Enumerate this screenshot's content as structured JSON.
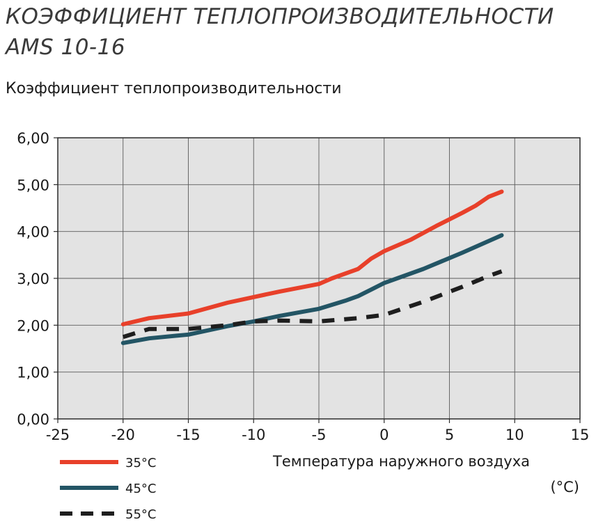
{
  "header": {
    "title_line1": "КОЭФФИЦИЕНТ ТЕПЛОПРОИЗВОДИТЕЛЬНОСТИ",
    "title_line2": "AMS 10-16",
    "subtitle": "Коэффициент теплопроизводительности"
  },
  "chart_data": {
    "type": "line",
    "title": "КОЭФФИЦИЕНТ ТЕПЛОПРОИЗВОДИТЕЛЬНОСТИ AMS 10-16",
    "ylabel": "Коэффициент теплопроизводительности",
    "xlabel": "Температура наружного воздуха",
    "xunit": "(°C)",
    "xlim": [
      -25,
      15
    ],
    "ylim": [
      0,
      6
    ],
    "xticks": [
      "-25",
      "-20",
      "-15",
      "-10",
      "-5",
      "0",
      "5",
      "10",
      "15"
    ],
    "yticks": [
      "0,00",
      "1,00",
      "2,00",
      "3,00",
      "4,00",
      "5,00",
      "6,00"
    ],
    "grid": true,
    "legend_position": "bottom-left",
    "series": [
      {
        "name": "35°C",
        "color": "#e8402a",
        "style": "solid",
        "x": [
          -20,
          -18,
          -15,
          -12,
          -10,
          -8,
          -5,
          -4,
          -2,
          -1,
          0,
          2,
          4,
          6,
          7,
          8,
          9
        ],
        "y": [
          2.02,
          2.15,
          2.25,
          2.48,
          2.6,
          2.72,
          2.88,
          3.0,
          3.2,
          3.42,
          3.58,
          3.82,
          4.12,
          4.4,
          4.55,
          4.74,
          4.85
        ]
      },
      {
        "name": "45°C",
        "color": "#235565",
        "style": "solid",
        "x": [
          -20,
          -18,
          -15,
          -12,
          -10,
          -8,
          -5,
          -3,
          -2,
          -1,
          0,
          3,
          6,
          9
        ],
        "y": [
          1.62,
          1.72,
          1.8,
          1.98,
          2.08,
          2.2,
          2.35,
          2.52,
          2.62,
          2.76,
          2.9,
          3.2,
          3.55,
          3.92
        ]
      },
      {
        "name": "55°C",
        "color": "#1e1e1e",
        "style": "dashed",
        "x": [
          -20,
          -18,
          -15,
          -12,
          -10,
          -8,
          -5,
          -2,
          0,
          3,
          6,
          8,
          9
        ],
        "y": [
          1.75,
          1.92,
          1.92,
          2.0,
          2.08,
          2.1,
          2.08,
          2.15,
          2.22,
          2.5,
          2.82,
          3.05,
          3.15
        ]
      }
    ]
  }
}
